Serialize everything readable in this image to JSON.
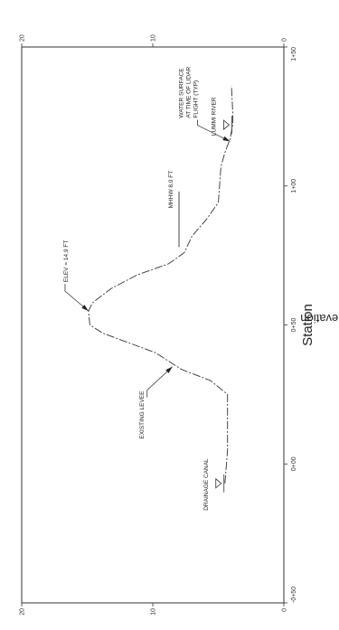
{
  "chart_data": {
    "type": "line",
    "xlabel": "Station",
    "ylabel": "Elevation",
    "x_ticks": [
      {
        "value": -50,
        "label": "-0+50"
      },
      {
        "value": 0,
        "label": "0+00"
      },
      {
        "value": 50,
        "label": "0+50"
      },
      {
        "value": 100,
        "label": "1+00"
      },
      {
        "value": 150,
        "label": "1+50"
      }
    ],
    "y_ticks": [
      {
        "value": 0,
        "label": "0"
      },
      {
        "value": 10,
        "label": "10"
      },
      {
        "value": 20,
        "label": "20"
      }
    ],
    "xlim": [
      -50,
      150
    ],
    "ylim": [
      0,
      20
    ],
    "grid": false,
    "series": [
      {
        "name": "",
        "points": [
          [
            -7,
            4.5
          ],
          [
            5,
            4.3
          ],
          [
            15,
            4.3
          ],
          [
            25,
            4.3
          ],
          [
            30,
            5.6
          ],
          [
            34,
            7.8
          ],
          [
            40,
            9.8
          ],
          [
            47,
            13.8
          ],
          [
            50,
            14.8
          ],
          [
            55,
            14.9
          ],
          [
            58,
            14.6
          ],
          [
            63,
            13.2
          ],
          [
            68,
            11.2
          ],
          [
            72,
            8.8
          ],
          [
            76,
            7.6
          ],
          [
            82,
            7.0
          ],
          [
            88,
            5.9
          ],
          [
            94,
            5.0
          ],
          [
            100,
            4.9
          ],
          [
            107,
            4.8
          ],
          [
            112,
            4.5
          ],
          [
            117,
            4.1
          ],
          [
            122,
            3.9
          ],
          [
            127,
            3.9
          ],
          [
            136,
            4.0
          ]
        ]
      }
    ],
    "annotations": {
      "drainage_canal": {
        "label": "DRAINAGE CANAL",
        "x": -7,
        "y": 4.5
      },
      "existing_levee": {
        "label": "EXISTING LEVEE",
        "x": 35,
        "y": 8.5
      },
      "elev": {
        "label": "ELEV = 14.9 FT",
        "x": 55,
        "y": 14.9
      },
      "mhhw": {
        "label": "MHHW 8.0 FT",
        "x": 92,
        "y": 8.0,
        "x_start": 78,
        "x_end": 98
      },
      "lummi_river": {
        "label": "LUMMI RIVER",
        "x": 122,
        "y": 3.9
      },
      "water_surface": {
        "lines": [
          "WATER SURFACE",
          "AT TIME OF LIDAR",
          "FLIGHT (TYP)"
        ],
        "x": 116,
        "y": 4.1
      }
    }
  }
}
